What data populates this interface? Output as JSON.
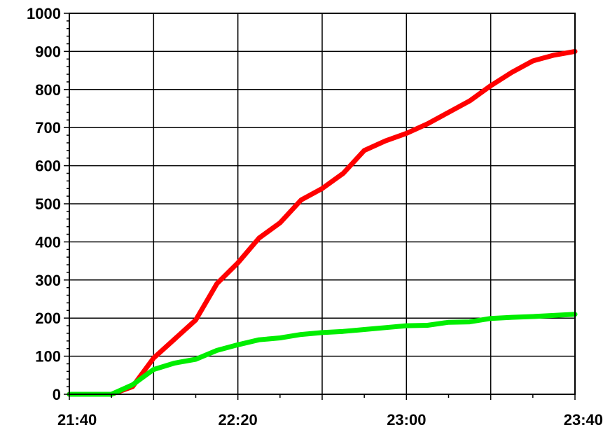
{
  "chart_data": {
    "type": "line",
    "title": "",
    "xlabel": "",
    "ylabel": "",
    "x_unit": "time",
    "xlim": [
      "21:40",
      "23:40"
    ],
    "ylim": [
      0,
      1000
    ],
    "grid": true,
    "x_ticks": [
      "21:40",
      "22:20",
      "23:00",
      "23:40"
    ],
    "y_ticks": [
      "0",
      "100",
      "200",
      "300",
      "400",
      "500",
      "600",
      "700",
      "800",
      "900",
      "1000"
    ],
    "x": [
      "21:40",
      "21:45",
      "21:50",
      "21:55",
      "22:00",
      "22:05",
      "22:10",
      "22:15",
      "22:20",
      "22:25",
      "22:30",
      "22:35",
      "22:40",
      "22:45",
      "22:50",
      "22:55",
      "23:00",
      "23:05",
      "23:10",
      "23:15",
      "23:20",
      "23:25",
      "23:30",
      "23:35",
      "23:40"
    ],
    "series": [
      {
        "color": "#ff0000",
        "values": [
          0,
          0,
          0,
          20,
          95,
          145,
          195,
          290,
          345,
          410,
          450,
          510,
          540,
          580,
          640,
          665,
          685,
          710,
          740,
          770,
          810,
          845,
          875,
          890,
          900
        ]
      },
      {
        "color": "#00ee00",
        "values": [
          0,
          0,
          0,
          25,
          65,
          82,
          92,
          115,
          130,
          143,
          148,
          157,
          162,
          165,
          170,
          175,
          180,
          181,
          189,
          190,
          199,
          202,
          204,
          207,
          210
        ]
      }
    ]
  }
}
